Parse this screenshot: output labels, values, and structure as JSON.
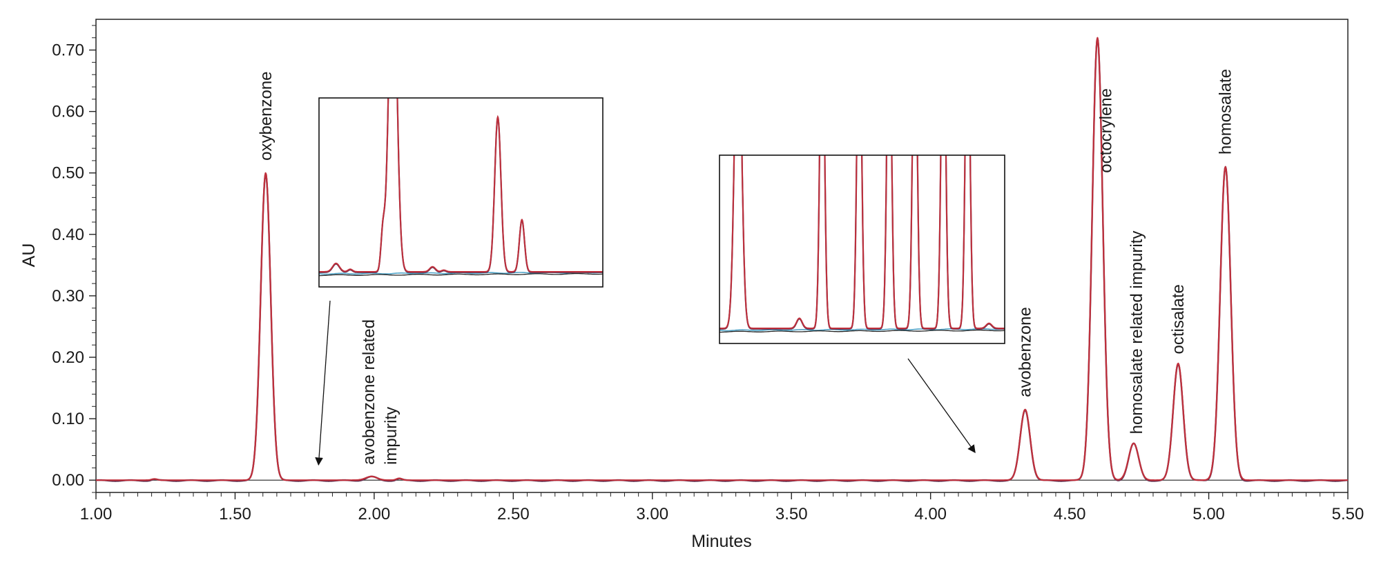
{
  "chart_data": {
    "type": "line",
    "xlabel": "Minutes",
    "ylabel": "AU",
    "xlim": [
      1.0,
      5.5
    ],
    "ylim": [
      -0.02,
      0.75
    ],
    "x_ticks": [
      "1.00",
      "1.50",
      "2.00",
      "2.50",
      "3.00",
      "3.50",
      "4.00",
      "4.50",
      "5.00",
      "5.50"
    ],
    "y_ticks": [
      "0.00",
      "0.10",
      "0.20",
      "0.30",
      "0.40",
      "0.50",
      "0.60",
      "0.70"
    ],
    "grid": false,
    "series": [
      {
        "color": "#c0303c",
        "peaks": [
          {
            "rt": 1.61,
            "height": 0.5,
            "width": 0.018
          },
          {
            "rt": 4.34,
            "height": 0.115,
            "width": 0.018
          },
          {
            "rt": 4.6,
            "height": 0.72,
            "width": 0.019
          },
          {
            "rt": 4.73,
            "height": 0.06,
            "width": 0.018
          },
          {
            "rt": 4.89,
            "height": 0.19,
            "width": 0.018
          },
          {
            "rt": 5.06,
            "height": 0.51,
            "width": 0.019
          },
          {
            "rt": 1.21,
            "height": 0.002,
            "width": 0.01
          },
          {
            "rt": 1.99,
            "height": 0.006,
            "width": 0.02
          },
          {
            "rt": 2.09,
            "height": 0.003,
            "width": 0.01
          }
        ]
      }
    ],
    "annotations": [
      {
        "text": "oxybenzone",
        "x": 1.61,
        "y": 0.52
      },
      {
        "text": "avobenzone related",
        "x": 1.98,
        "y": 0.025
      },
      {
        "text": "impurity",
        "x": 2.06,
        "y": 0.025
      },
      {
        "text": "avobenzone",
        "x": 4.34,
        "y": 0.135
      },
      {
        "text": "octocrylene",
        "x": 4.63,
        "y": 0.5
      },
      {
        "text": "homosalate related impurity",
        "x": 4.74,
        "y": 0.075
      },
      {
        "text": "octisalate",
        "x": 4.89,
        "y": 0.205
      },
      {
        "text": "homosalate",
        "x": 5.06,
        "y": 0.53
      }
    ],
    "insets": [
      {
        "points_to_x": 1.8,
        "points_to_y": 0.025,
        "peaks": [
          {
            "pos": 0.06,
            "h": 0.05,
            "w": 0.012
          },
          {
            "pos": 0.11,
            "h": 0.015,
            "w": 0.008
          },
          {
            "pos": 0.225,
            "h": 0.22,
            "w": 0.007
          },
          {
            "pos": 0.26,
            "h": 2.0,
            "w": 0.014
          },
          {
            "pos": 0.4,
            "h": 0.03,
            "w": 0.01
          },
          {
            "pos": 0.44,
            "h": 0.01,
            "w": 0.008
          },
          {
            "pos": 0.63,
            "h": 0.92,
            "w": 0.011
          },
          {
            "pos": 0.715,
            "h": 0.31,
            "w": 0.009
          }
        ]
      },
      {
        "points_to_x": 4.16,
        "points_to_y": 0.045,
        "peaks": [
          {
            "pos": 0.065,
            "h": 2.0,
            "w": 0.012
          },
          {
            "pos": 0.28,
            "h": 0.06,
            "w": 0.01
          },
          {
            "pos": 0.36,
            "h": 2.0,
            "w": 0.008
          },
          {
            "pos": 0.49,
            "h": 2.0,
            "w": 0.008
          },
          {
            "pos": 0.595,
            "h": 2.0,
            "w": 0.008
          },
          {
            "pos": 0.685,
            "h": 2.0,
            "w": 0.008
          },
          {
            "pos": 0.785,
            "h": 2.0,
            "w": 0.008
          },
          {
            "pos": 0.87,
            "h": 2.0,
            "w": 0.008
          },
          {
            "pos": 0.945,
            "h": 0.03,
            "w": 0.01
          }
        ]
      }
    ]
  }
}
